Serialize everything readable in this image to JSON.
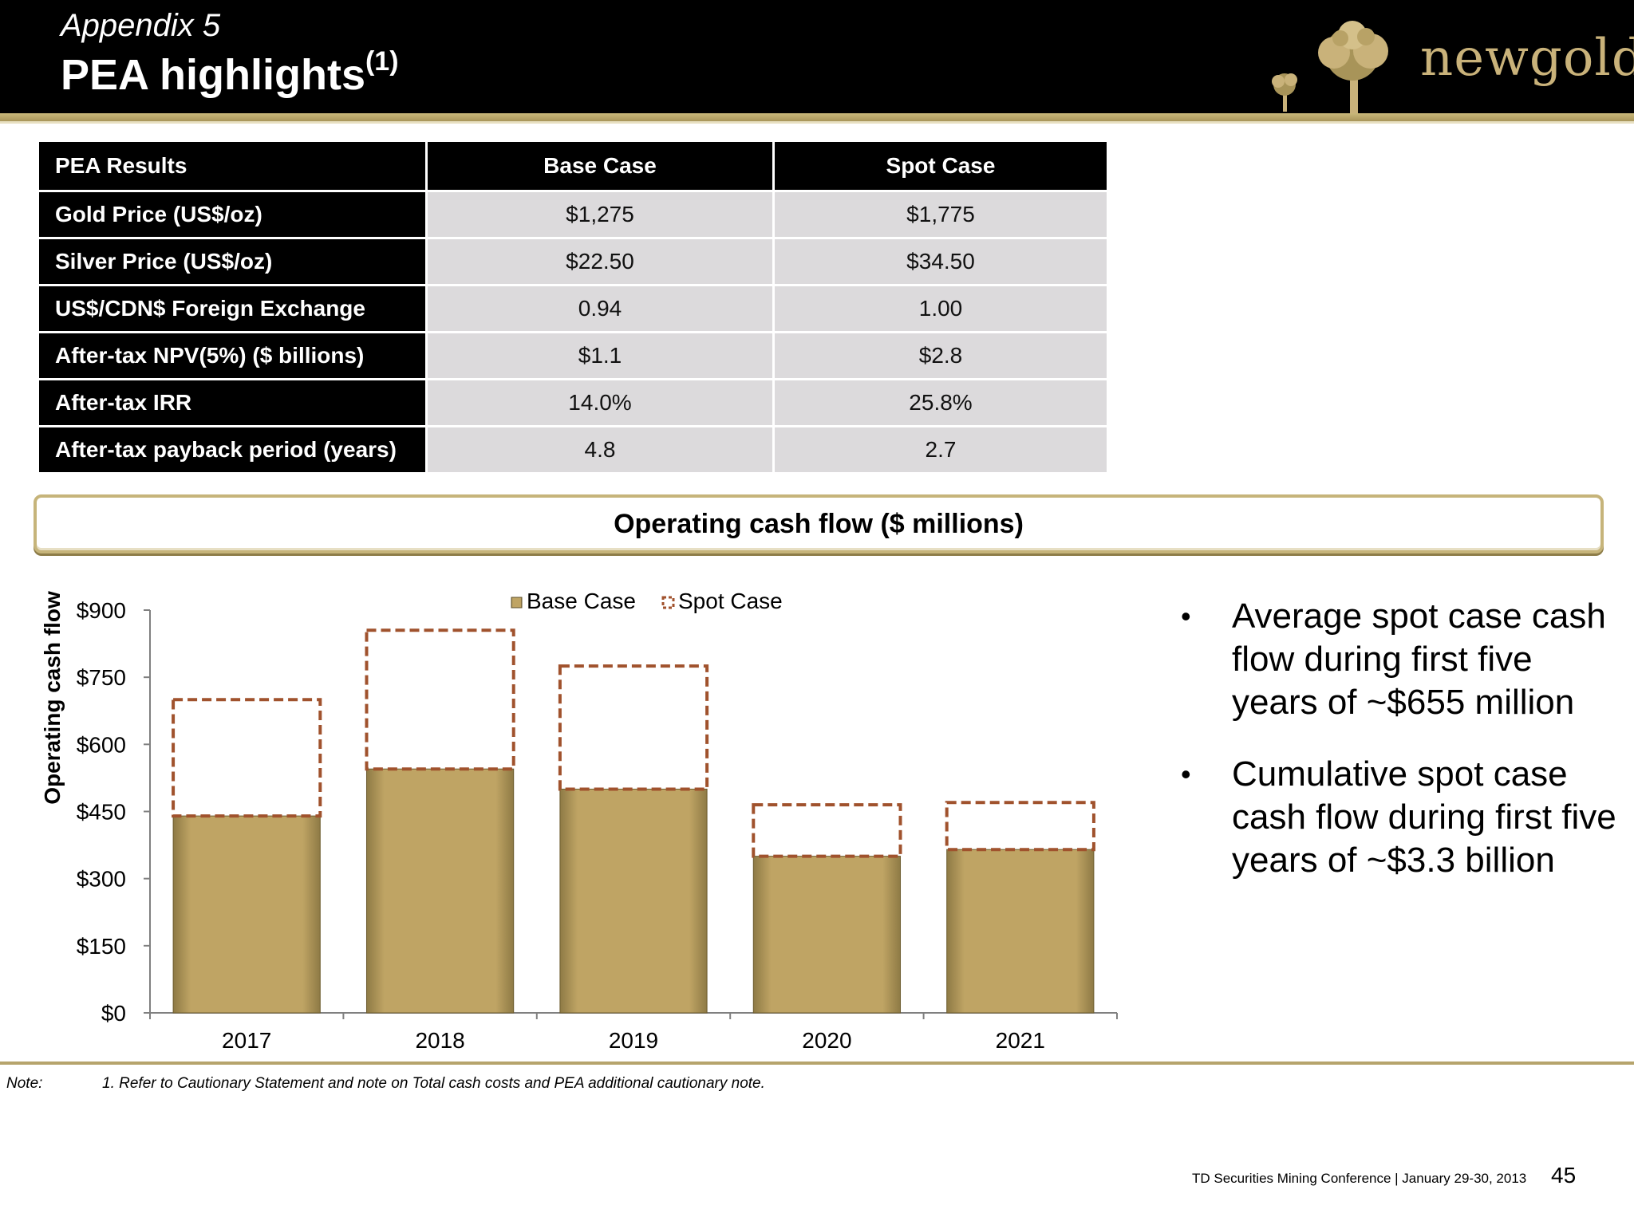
{
  "header": {
    "subtitle": "Appendix 5",
    "title": "PEA highlights",
    "title_superscript": "(1)",
    "logo_text": "newgold"
  },
  "table": {
    "headers": [
      "PEA Results",
      "Base Case",
      "Spot Case"
    ],
    "rows": [
      {
        "label": "Gold Price (US$/oz)",
        "base": "$1,275",
        "spot": "$1,775"
      },
      {
        "label": "Silver Price (US$/oz)",
        "base": "$22.50",
        "spot": "$34.50"
      },
      {
        "label": "US$/CDN$ Foreign Exchange",
        "base": "0.94",
        "spot": "1.00"
      },
      {
        "label": "After-tax NPV(5%) ($ billions)",
        "base": "$1.1",
        "spot": "$2.8"
      },
      {
        "label": "After-tax IRR",
        "base": "14.0%",
        "spot": "25.8%"
      },
      {
        "label": "After-tax payback period (years)",
        "base": "4.8",
        "spot": "2.7"
      }
    ]
  },
  "chart_banner": "Operating cash flow ($ millions)",
  "chart_data": {
    "type": "bar",
    "title": "Operating cash flow ($ millions)",
    "xlabel": "",
    "ylabel": "Operating cash flow",
    "categories": [
      "2017",
      "2018",
      "2019",
      "2020",
      "2021"
    ],
    "series": [
      {
        "name": "Base Case",
        "values": [
          440,
          545,
          500,
          350,
          365
        ],
        "color": "#bfa464",
        "style": "solid"
      },
      {
        "name": "Spot Case",
        "values": [
          700,
          855,
          775,
          465,
          470
        ],
        "color": "#a0522d",
        "style": "dashed"
      }
    ],
    "yticks": [
      "$0",
      "$150",
      "$300",
      "$450",
      "$600",
      "$750",
      "$900"
    ],
    "ylim": [
      0,
      900
    ],
    "legend_position": "top",
    "grid": false
  },
  "bullets": [
    "Average spot case cash flow during first five years of ~$655 million",
    "Cumulative spot case cash flow during first five years of ~$3.3 billion"
  ],
  "footer": {
    "note_label": "Note:",
    "note_text": "1. Refer to Cautionary Statement and note on Total cash costs and PEA additional cautionary note.",
    "conference": "TD Securities Mining Conference  |  January 29-30, 2013",
    "page_number": "45"
  },
  "colors": {
    "brand_gold": "#c9b27a",
    "bar_gold": "#bfa464",
    "spot_outline": "#a0522d"
  }
}
